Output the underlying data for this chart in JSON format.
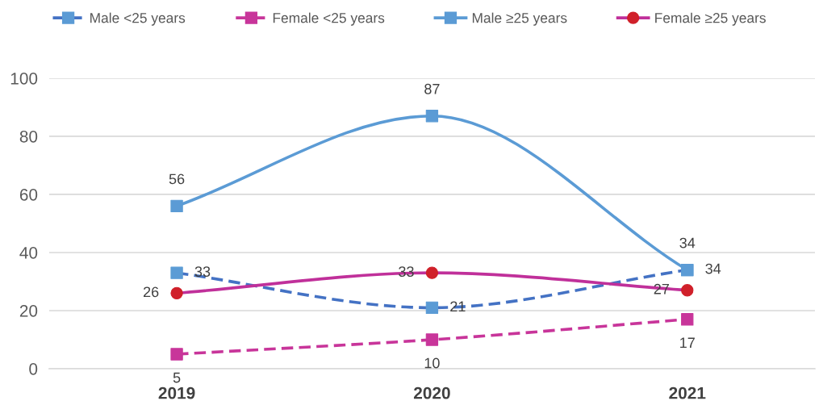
{
  "chart_data": {
    "type": "line",
    "categories": [
      "2019",
      "2020",
      "2021"
    ],
    "series": [
      {
        "name": "Male <25 years",
        "color": "#4472c4",
        "colors": [
          "#5b9bd5",
          "#5b9bd5",
          "#5b9bd5"
        ],
        "values": [
          33,
          21,
          34
        ],
        "line_style": "dashed",
        "marker": "square"
      },
      {
        "name": "Female <25 years",
        "color": "#c8359a",
        "colors": [
          "#c8359a",
          "#c8359a",
          "#c8359a"
        ],
        "values": [
          5,
          10,
          17
        ],
        "line_style": "dashed",
        "marker": "square"
      },
      {
        "name": "Male ≥25 years",
        "color": "#5b9bd5",
        "colors": [
          "#5b9bd5",
          "#5b9bd5",
          "#5b9bd5"
        ],
        "values": [
          56,
          87,
          34
        ],
        "line_style": "solid",
        "marker": "square"
      },
      {
        "name": "Female ≥25 years",
        "color": "#c0309a",
        "colors": [
          "#d0202a",
          "#d0202a",
          "#d0202a"
        ],
        "values": [
          26,
          33,
          27
        ],
        "line_style": "solid",
        "marker": "circle"
      }
    ],
    "ylim": [
      0,
      100
    ],
    "yticks": [
      0,
      20,
      40,
      60,
      80,
      100
    ],
    "grid": "y",
    "legend": "top",
    "data_labels": true
  }
}
